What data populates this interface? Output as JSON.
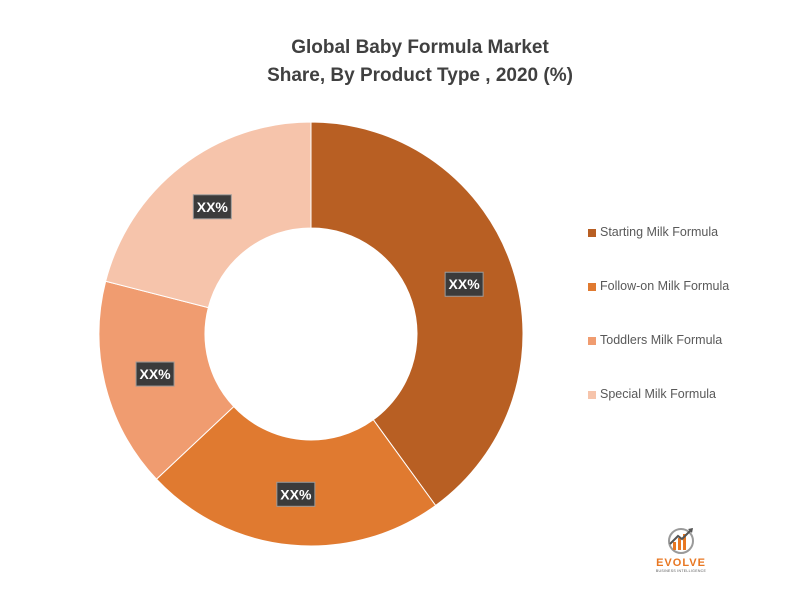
{
  "chart_data": {
    "type": "donut",
    "title": [
      "Global Baby Formula Market",
      "Share, By  Product Type , 2020 (%)"
    ],
    "legend_position": "right",
    "series": [
      {
        "name": "Starting Milk Formula",
        "value": 40,
        "label": "XX%",
        "color": "#b85f23"
      },
      {
        "name": "Follow-on Milk Formula",
        "value": 23,
        "label": "XX%",
        "color": "#e07a30"
      },
      {
        "name": "Toddlers Milk Formula",
        "value": 16,
        "label": "XX%",
        "color": "#f09c70"
      },
      {
        "name": "Special Milk Formula",
        "value": 21,
        "label": "XX%",
        "color": "#f6c4ab"
      }
    ]
  },
  "logo": {
    "name": "EVOLVE",
    "tagline": "BUSINESS INTELLIGENCE",
    "icon": "bar-chart-arrow-icon",
    "accent": "#e87722"
  }
}
